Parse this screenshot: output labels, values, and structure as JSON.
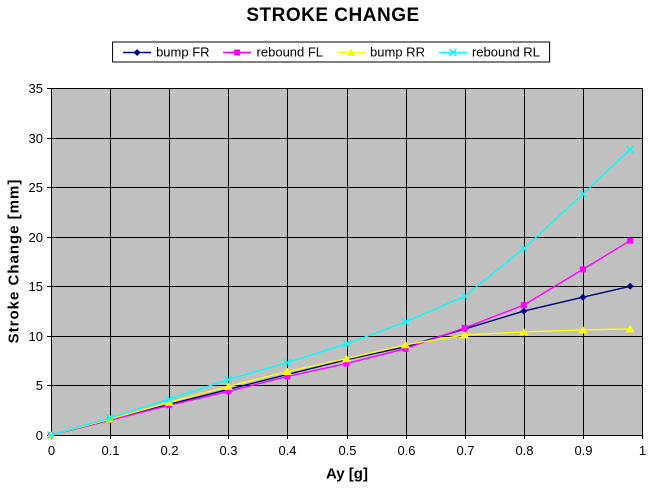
{
  "title": "STROKE CHANGE",
  "axes": {
    "x_label": "Ay [g]",
    "y_label": "Stroke Change [mm]",
    "x_ticks": [
      "0",
      "0.1",
      "0.2",
      "0.3",
      "0.4",
      "0.5",
      "0.6",
      "0.7",
      "0.8",
      "0.9",
      "1"
    ],
    "y_ticks": [
      "0",
      "5",
      "10",
      "15",
      "20",
      "25",
      "30",
      "35"
    ]
  },
  "colors": {
    "plot_background": "#C0C0C0",
    "gridline": "#000000",
    "border": "#000000",
    "text": "#000000",
    "page_background": "#FFFFFF"
  },
  "chart_data": {
    "type": "line",
    "title": "STROKE CHANGE",
    "xlabel": "Ay [g]",
    "ylabel": "Stroke Change [mm]",
    "xlim": [
      0,
      1
    ],
    "ylim": [
      0,
      35
    ],
    "x_tick_step": 0.1,
    "y_tick_step": 5,
    "grid": true,
    "plot_background": "#C0C0C0",
    "legend_position": "top-center",
    "x": [
      0,
      0.1,
      0.2,
      0.3,
      0.4,
      0.5,
      0.6,
      0.7,
      0.8,
      0.9,
      0.98
    ],
    "series": [
      {
        "name": "bump FR",
        "color": "#000080",
        "marker": "diamond",
        "values": [
          0,
          1.5,
          3.1,
          4.6,
          6.1,
          7.6,
          8.9,
          10.7,
          12.5,
          13.9,
          15.0
        ]
      },
      {
        "name": "rebound FL",
        "color": "#FF00FF",
        "marker": "square",
        "values": [
          0,
          1.5,
          3.0,
          4.4,
          5.9,
          7.2,
          8.7,
          10.8,
          13.1,
          16.7,
          19.6
        ]
      },
      {
        "name": "bump RR",
        "color": "#FFFF00",
        "marker": "triangle",
        "values": [
          0,
          1.6,
          3.3,
          4.9,
          6.4,
          7.7,
          9.1,
          10.1,
          10.4,
          10.6,
          10.7
        ]
      },
      {
        "name": "rebound RL",
        "color": "#00FFFF",
        "marker": "x",
        "values": [
          0,
          1.7,
          3.6,
          5.6,
          7.3,
          9.2,
          11.4,
          14.0,
          18.8,
          24.3,
          28.8
        ]
      }
    ]
  }
}
